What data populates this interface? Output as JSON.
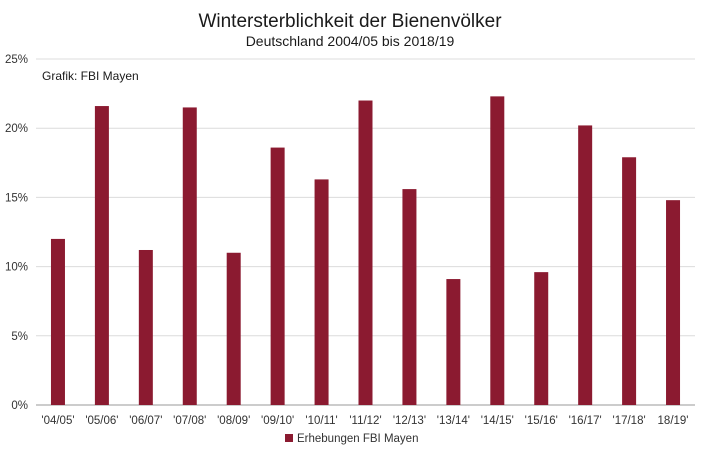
{
  "chart_data": {
    "type": "bar",
    "title": "Wintersterblichkeit der Bienenvölker",
    "subtitle": "Deutschland 2004/05 bis 2018/19",
    "source_note": "Grafik: FBI Mayen",
    "categories": [
      "'04/05'",
      "'05/06'",
      "'06/07'",
      "'07/08'",
      "'08/09'",
      "'09/10'",
      "'10/11'",
      "'11/12'",
      "'12/13'",
      "'13/14'",
      "'14/15'",
      "'15/16'",
      "'16/17'",
      "'17/18'",
      "18/19'"
    ],
    "series": [
      {
        "name": "Erhebungen FBI Mayen",
        "values": [
          12.0,
          21.6,
          11.2,
          21.5,
          11.0,
          18.6,
          16.3,
          22.0,
          15.6,
          9.1,
          22.3,
          9.6,
          20.2,
          17.9,
          14.8
        ],
        "color": "#8b1a30"
      }
    ],
    "yticks": [
      "0%",
      "5%",
      "10%",
      "15%",
      "20%",
      "25%"
    ],
    "ylim": [
      0,
      25
    ],
    "grid": true,
    "legend_position": "bottom",
    "xlabel": "",
    "ylabel": ""
  }
}
